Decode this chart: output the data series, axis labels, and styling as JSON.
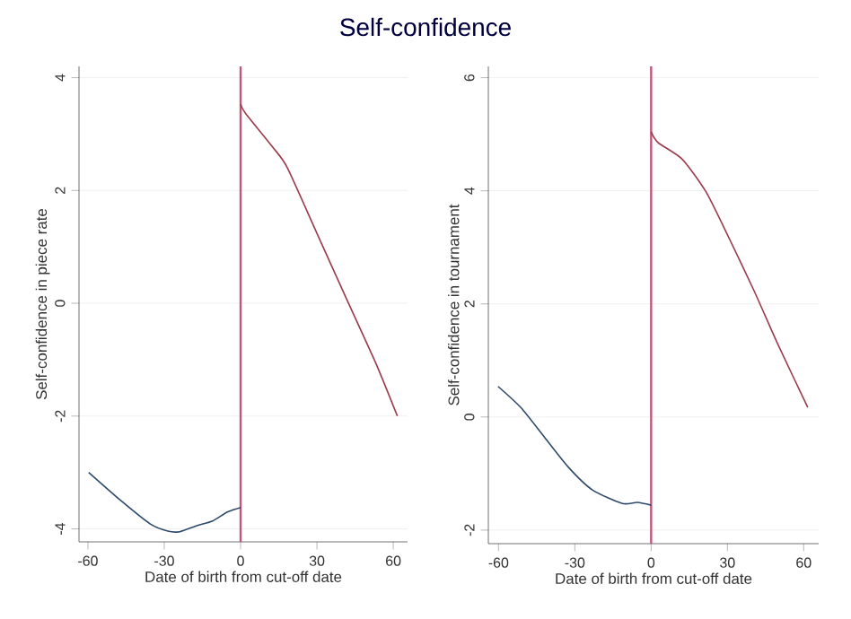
{
  "chart_data": [
    {
      "type": "line",
      "title": "Self-confidence",
      "xlabel": "Date of birth from cut-off date",
      "ylabel": "Self-confidence in piece rate",
      "xlim": [
        -63.5,
        65.6
      ],
      "ylim": [
        -4.23,
        4.2
      ],
      "xticks": [
        -60,
        -30,
        0,
        30,
        60
      ],
      "yticks": [
        -4,
        -2,
        0,
        2,
        4
      ],
      "grid": "y",
      "series": [
        {
          "color": "#2e4a6b",
          "x": [
            -59.7,
            -47.3,
            -35.6,
            -28.6,
            -23.9,
            -16.9,
            -11,
            -5.2,
            0
          ],
          "values": [
            -3.0,
            -3.49,
            -3.91,
            -4.04,
            -4.05,
            -3.94,
            -3.86,
            -3.7,
            -3.62
          ]
        },
        {
          "color": "#9b3a4a",
          "x": [
            0,
            1.9,
            12.4,
            18.3,
            30,
            41.7,
            53.4,
            61.6
          ],
          "values": [
            3.53,
            3.37,
            2.78,
            2.41,
            1.24,
            0.07,
            -1.09,
            -2.0
          ]
        }
      ],
      "ref_lines": [
        {
          "axis": "x",
          "value": 0,
          "color": "#c0577a"
        }
      ]
    },
    {
      "type": "line",
      "xlabel": "Date of birth from cut-off date",
      "ylabel": "Self-confidence in tournament",
      "xlim": [
        -64,
        65.9
      ],
      "ylim": [
        -2.24,
        6.2
      ],
      "xticks": [
        -60,
        -30,
        0,
        30,
        60
      ],
      "yticks": [
        -2,
        0,
        2,
        4,
        6
      ],
      "grid": "y",
      "series": [
        {
          "color": "#2e4a6b",
          "x": [
            -60.2,
            -51.3,
            -41.9,
            -32.5,
            -23.1,
            -11.3,
            -5.4,
            0
          ],
          "values": [
            0.54,
            0.17,
            -0.36,
            -0.89,
            -1.29,
            -1.53,
            -1.51,
            -1.56
          ]
        },
        {
          "color": "#9b3a4a",
          "x": [
            0,
            2.8,
            12.2,
            21.6,
            31,
            40.5,
            49.9,
            61.6
          ],
          "values": [
            5.04,
            4.85,
            4.56,
            3.98,
            3.13,
            2.23,
            1.28,
            0.17
          ]
        }
      ],
      "ref_lines": [
        {
          "axis": "x",
          "value": 0,
          "color": "#c0577a"
        }
      ]
    }
  ]
}
